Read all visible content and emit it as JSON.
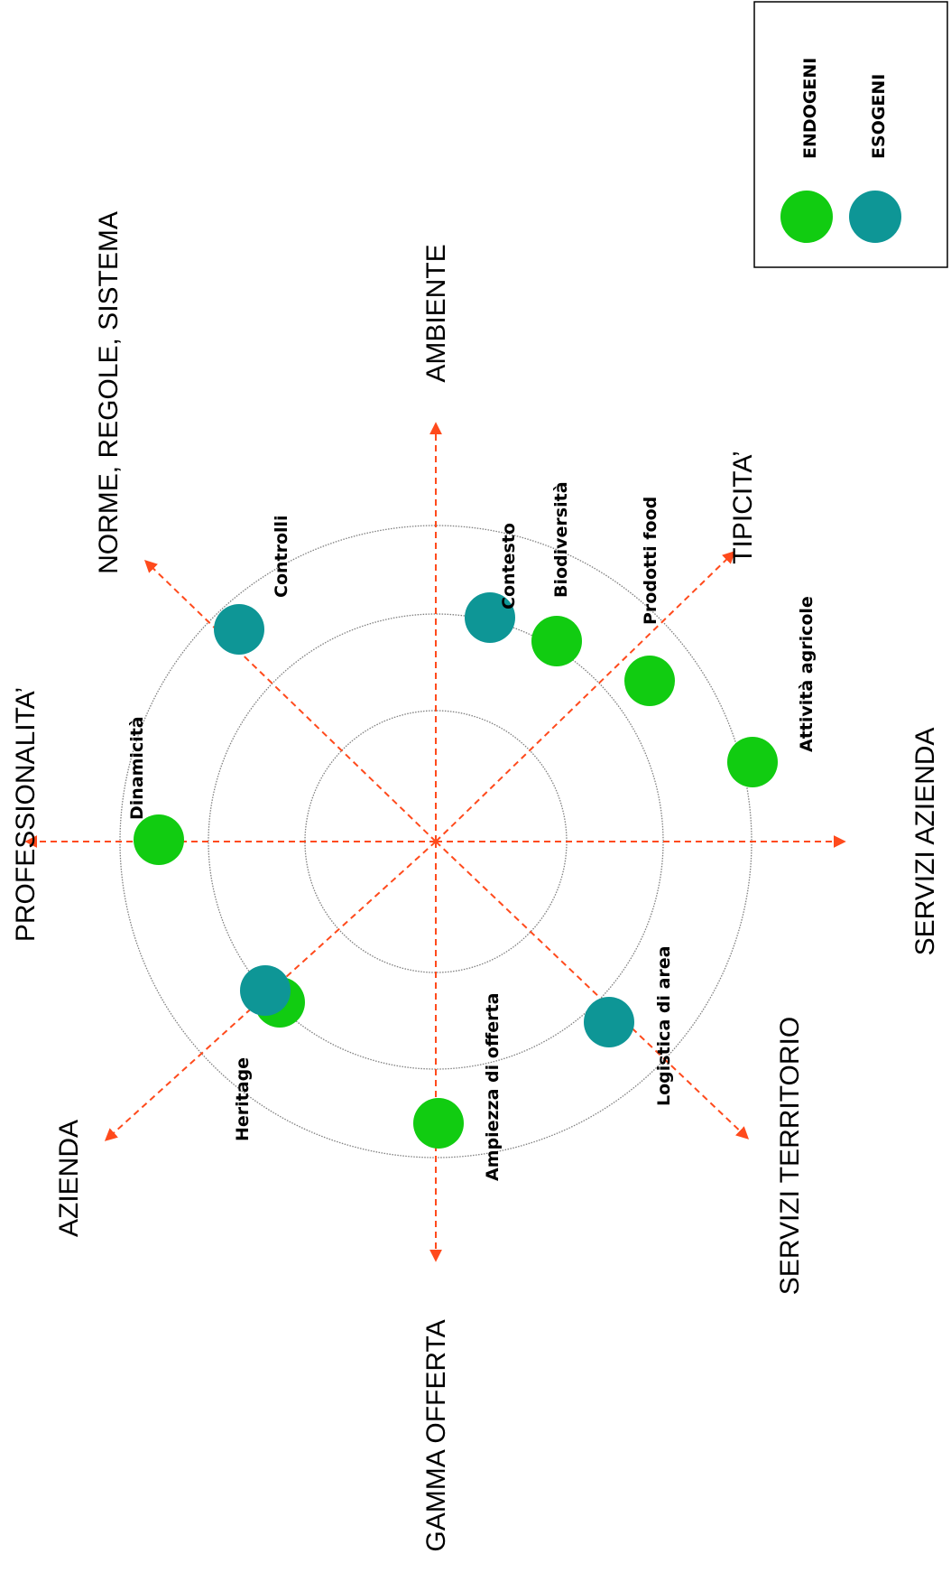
{
  "axes": [
    {
      "id": "ambiente",
      "label": "AMBIENTE"
    },
    {
      "id": "tipicita",
      "label": "TIPICITA’"
    },
    {
      "id": "servizi-azienda",
      "label": "SERVIZI AZIENDA"
    },
    {
      "id": "servizi-territorio",
      "label": "SERVIZI TERRITORIO"
    },
    {
      "id": "gamma-offerta",
      "label": "GAMMA OFFERTA"
    },
    {
      "id": "azienda",
      "label": "AZIENDA"
    },
    {
      "id": "professionalita",
      "label": "PROFESSIONALITA’"
    },
    {
      "id": "norme",
      "label": "NORME, REGOLE, SISTEMA"
    }
  ],
  "rings": 3,
  "points": [
    {
      "label": "Contesto",
      "type": "esogeni",
      "ring": 2
    },
    {
      "label": "Biodiversità",
      "type": "endogeni",
      "ring": 2
    },
    {
      "label": "Prodotti food",
      "type": "endogeni",
      "ring": 2
    },
    {
      "label": "Attività agricole",
      "type": "endogeni",
      "ring": 3
    },
    {
      "label": "Logistica di area",
      "type": "esogeni",
      "ring": 2
    },
    {
      "label": "Ampiezza di offerta",
      "type": "endogeni",
      "ring": 2
    },
    {
      "label": "Heritage",
      "type": "endogeni",
      "ring": 2
    },
    {
      "label": "",
      "type": "esogeni",
      "ring": 2
    },
    {
      "label": "Dinamicità",
      "type": "endogeni",
      "ring": 3
    },
    {
      "label": "Controlli",
      "type": "esogeni",
      "ring": 3
    }
  ],
  "legend": {
    "items": [
      {
        "label": "ENDOGENI",
        "color": "#11cc11"
      },
      {
        "label": "ESOGENI",
        "color": "#0e9696"
      }
    ]
  },
  "colors": {
    "endogeni": "#11cc11",
    "esogeni": "#0e9696",
    "axis": "#ff4a1c",
    "ring": "#7f7f7f"
  }
}
